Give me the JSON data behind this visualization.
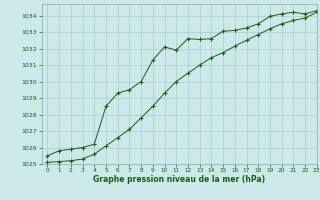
{
  "xlabel": "Graphe pression niveau de la mer (hPa)",
  "bg_color": "#cce8e8",
  "grid_color": "#aacccc",
  "line_color": "#1a5c1a",
  "ylim": [
    1025,
    1034.7
  ],
  "xlim": [
    -0.5,
    23
  ],
  "yticks": [
    1025,
    1026,
    1027,
    1028,
    1029,
    1030,
    1031,
    1032,
    1033,
    1034
  ],
  "xticks": [
    0,
    1,
    2,
    3,
    4,
    5,
    6,
    7,
    8,
    9,
    10,
    11,
    12,
    13,
    14,
    15,
    16,
    17,
    18,
    19,
    20,
    21,
    22,
    23
  ],
  "series1_x": [
    0,
    1,
    2,
    3,
    4,
    5,
    6,
    7,
    8,
    9,
    10,
    11,
    12,
    13,
    14,
    15,
    16,
    17,
    18,
    19,
    20,
    21,
    22,
    23
  ],
  "series1_y": [
    1025.5,
    1025.8,
    1025.9,
    1026.0,
    1026.2,
    1028.5,
    1029.3,
    1029.5,
    1030.0,
    1031.3,
    1032.1,
    1031.9,
    1032.6,
    1032.55,
    1032.6,
    1033.05,
    1033.1,
    1033.25,
    1033.5,
    1033.95,
    1034.1,
    1034.2,
    1034.1,
    1034.3
  ],
  "series2_x": [
    0,
    1,
    2,
    3,
    4,
    5,
    6,
    7,
    8,
    9,
    10,
    11,
    12,
    13,
    14,
    15,
    16,
    17,
    18,
    19,
    20,
    21,
    22,
    23
  ],
  "series2_y": [
    1025.1,
    1025.15,
    1025.2,
    1025.3,
    1025.6,
    1026.1,
    1026.6,
    1027.1,
    1027.8,
    1028.5,
    1029.3,
    1030.0,
    1030.5,
    1031.0,
    1031.45,
    1031.75,
    1032.15,
    1032.5,
    1032.85,
    1033.2,
    1033.5,
    1033.7,
    1033.85,
    1034.2
  ]
}
